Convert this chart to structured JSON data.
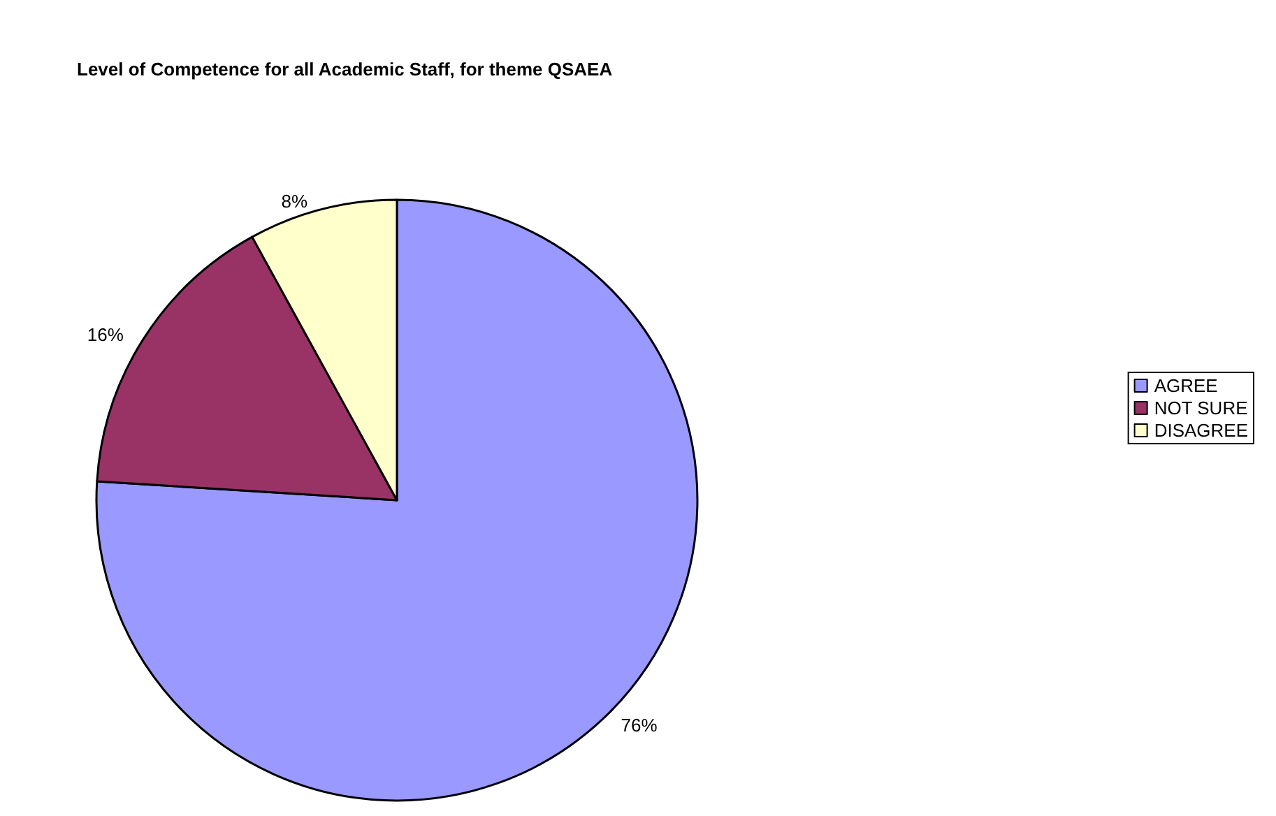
{
  "chart_data": {
    "type": "pie",
    "title": "Level of Competence for all Academic Staff, for theme QSAEA",
    "categories": [
      "AGREE",
      "NOT SURE",
      "DISAGREE"
    ],
    "values": [
      76,
      16,
      8
    ],
    "value_labels": [
      "76%",
      "16%",
      "8%"
    ],
    "colors": [
      "#9999ff",
      "#993366",
      "#ffffcc"
    ],
    "legend": "right"
  }
}
